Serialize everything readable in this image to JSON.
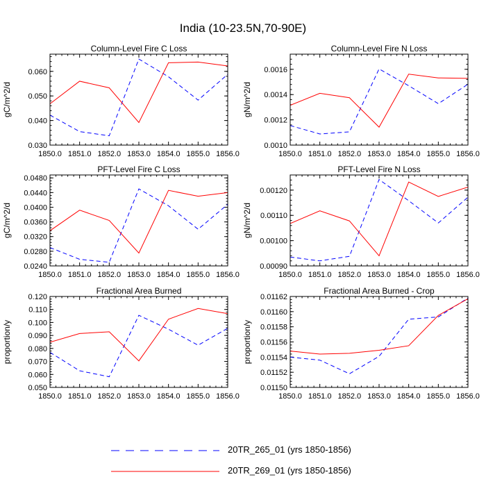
{
  "figure_title": "India (10-23.5N,70-90E)",
  "legend": [
    {
      "label": "20TR_265_01 (yrs 1850-1856)",
      "color": "#0000ff",
      "dash": "dashed"
    },
    {
      "label": "20TR_269_01 (yrs 1850-1856)",
      "color": "#ff0000",
      "dash": "solid"
    }
  ],
  "chart_data": [
    {
      "type": "line",
      "title": "Column-Level Fire C Loss",
      "xlabel": "",
      "ylabel": "gC/m^2/d",
      "x": [
        1850,
        1851,
        1852,
        1853,
        1854,
        1855,
        1856
      ],
      "xticks": [
        "1850.0",
        "1851.0",
        "1852.0",
        "1853.0",
        "1854.0",
        "1855.0",
        "1856.0"
      ],
      "ylim": [
        0.03,
        0.067
      ],
      "yticks": [
        0.03,
        0.04,
        0.05,
        0.06
      ],
      "ytick_labels": [
        "0.030",
        "0.040",
        "0.050",
        "0.060"
      ],
      "series": [
        {
          "name": "20TR_265_01 (yrs 1850-1856)",
          "color": "#0000ff",
          "dash": "dashed",
          "values": [
            0.0422,
            0.0355,
            0.0338,
            0.065,
            0.0578,
            0.0483,
            0.0588
          ]
        },
        {
          "name": "20TR_269_01 (yrs 1850-1856)",
          "color": "#ff0000",
          "dash": "solid",
          "values": [
            0.0468,
            0.056,
            0.0533,
            0.0392,
            0.0635,
            0.0638,
            0.0622
          ]
        }
      ]
    },
    {
      "type": "line",
      "title": "Column-Level Fire N Loss",
      "xlabel": "",
      "ylabel": "gN/m^2/d",
      "x": [
        1850,
        1851,
        1852,
        1853,
        1854,
        1855,
        1856
      ],
      "xticks": [
        "1850.0",
        "1851.0",
        "1852.0",
        "1853.0",
        "1854.0",
        "1855.0",
        "1856.0"
      ],
      "ylim": [
        0.001,
        0.00172
      ],
      "yticks": [
        0.001,
        0.0012,
        0.0014,
        0.0016
      ],
      "ytick_labels": [
        "0.0010",
        "0.0012",
        "0.0014",
        "0.0016"
      ],
      "series": [
        {
          "name": "20TR_265_01 (yrs 1850-1856)",
          "color": "#0000ff",
          "dash": "dashed",
          "values": [
            0.001155,
            0.001088,
            0.001105,
            0.001603,
            0.00147,
            0.001328,
            0.001482
          ]
        },
        {
          "name": "20TR_269_01 (yrs 1850-1856)",
          "color": "#ff0000",
          "dash": "solid",
          "values": [
            0.001315,
            0.00141,
            0.001375,
            0.001142,
            0.001562,
            0.001532,
            0.001528
          ]
        }
      ]
    },
    {
      "type": "line",
      "title": "PFT-Level Fire C Loss",
      "xlabel": "",
      "ylabel": "gC/m^2/d",
      "x": [
        1850,
        1851,
        1852,
        1853,
        1854,
        1855,
        1856
      ],
      "xticks": [
        "1850.0",
        "1851.0",
        "1852.0",
        "1853.0",
        "1854.0",
        "1855.0",
        "1856.0"
      ],
      "ylim": [
        0.024,
        0.0488
      ],
      "yticks": [
        0.024,
        0.028,
        0.032,
        0.036,
        0.04,
        0.044,
        0.048
      ],
      "ytick_labels": [
        "0.0240",
        "0.0280",
        "0.0320",
        "0.0360",
        "0.0400",
        "0.0440",
        "0.0480"
      ],
      "series": [
        {
          "name": "20TR_265_01 (yrs 1850-1856)",
          "color": "#0000ff",
          "dash": "dashed",
          "values": [
            0.029,
            0.0258,
            0.025,
            0.045,
            0.0404,
            0.034,
            0.0408
          ]
        },
        {
          "name": "20TR_269_01 (yrs 1850-1856)",
          "color": "#ff0000",
          "dash": "solid",
          "values": [
            0.0336,
            0.0392,
            0.0364,
            0.0275,
            0.0446,
            0.043,
            0.044
          ]
        }
      ]
    },
    {
      "type": "line",
      "title": "PFT-Level Fire N Loss",
      "xlabel": "",
      "ylabel": "gN/m^2/d",
      "x": [
        1850,
        1851,
        1852,
        1853,
        1854,
        1855,
        1856
      ],
      "xticks": [
        "1850.0",
        "1851.0",
        "1852.0",
        "1853.0",
        "1854.0",
        "1855.0",
        "1856.0"
      ],
      "ylim": [
        0.0009,
        0.00126
      ],
      "yticks": [
        0.0009,
        0.001,
        0.0011,
        0.0012
      ],
      "ytick_labels": [
        "0.00090",
        "0.00100",
        "0.00110",
        "0.00120"
      ],
      "series": [
        {
          "name": "20TR_265_01 (yrs 1850-1856)",
          "color": "#0000ff",
          "dash": "dashed",
          "values": [
            0.000935,
            0.00092,
            0.000938,
            0.001242,
            0.001158,
            0.00107,
            0.001172
          ]
        },
        {
          "name": "20TR_269_01 (yrs 1850-1856)",
          "color": "#ff0000",
          "dash": "solid",
          "values": [
            0.001068,
            0.001118,
            0.001078,
            0.00094,
            0.001232,
            0.001175,
            0.001212
          ]
        }
      ]
    },
    {
      "type": "line",
      "title": "Fractional Area Burned",
      "xlabel": "",
      "ylabel": "proportion/y",
      "x": [
        1850,
        1851,
        1852,
        1853,
        1854,
        1855,
        1856
      ],
      "xticks": [
        "1850.0",
        "1851.0",
        "1852.0",
        "1853.0",
        "1854.0",
        "1855.0",
        "1856.0"
      ],
      "ylim": [
        0.05,
        0.12
      ],
      "yticks": [
        0.05,
        0.06,
        0.07,
        0.08,
        0.09,
        0.1,
        0.11,
        0.12
      ],
      "ytick_labels": [
        "0.050",
        "0.060",
        "0.070",
        "0.080",
        "0.090",
        "0.100",
        "0.110",
        "0.120"
      ],
      "series": [
        {
          "name": "20TR_265_01 (yrs 1850-1856)",
          "color": "#0000ff",
          "dash": "dashed",
          "values": [
            0.077,
            0.0628,
            0.0582,
            0.1055,
            0.0948,
            0.0825,
            0.0955
          ]
        },
        {
          "name": "20TR_269_01 (yrs 1850-1856)",
          "color": "#ff0000",
          "dash": "solid",
          "values": [
            0.0848,
            0.0915,
            0.0928,
            0.0704,
            0.1025,
            0.1108,
            0.1068
          ]
        }
      ]
    },
    {
      "type": "line",
      "title": "Fractional Area Burned - Crop",
      "xlabel": "",
      "ylabel": "proportion/y",
      "x": [
        1850,
        1851,
        1852,
        1853,
        1854,
        1855,
        1856
      ],
      "xticks": [
        "1850.0",
        "1851.0",
        "1852.0",
        "1853.0",
        "1854.0",
        "1855.0",
        "1856.0"
      ],
      "ylim": [
        0.0115,
        0.01162
      ],
      "yticks": [
        0.0115,
        0.01152,
        0.01154,
        0.01156,
        0.01158,
        0.0116,
        0.01162
      ],
      "ytick_labels": [
        "0.01150",
        "0.01152",
        "0.01154",
        "0.01156",
        "0.01158",
        "0.01160",
        "0.01162"
      ],
      "series": [
        {
          "name": "20TR_265_01 (yrs 1850-1856)",
          "color": "#0000ff",
          "dash": "dashed",
          "values": [
            0.01154,
            0.011536,
            0.011518,
            0.011541,
            0.01159,
            0.011593,
            0.011618
          ]
        },
        {
          "name": "20TR_269_01 (yrs 1850-1856)",
          "color": "#ff0000",
          "dash": "solid",
          "values": [
            0.011548,
            0.011544,
            0.011545,
            0.011549,
            0.011555,
            0.011595,
            0.011617
          ]
        }
      ]
    }
  ]
}
